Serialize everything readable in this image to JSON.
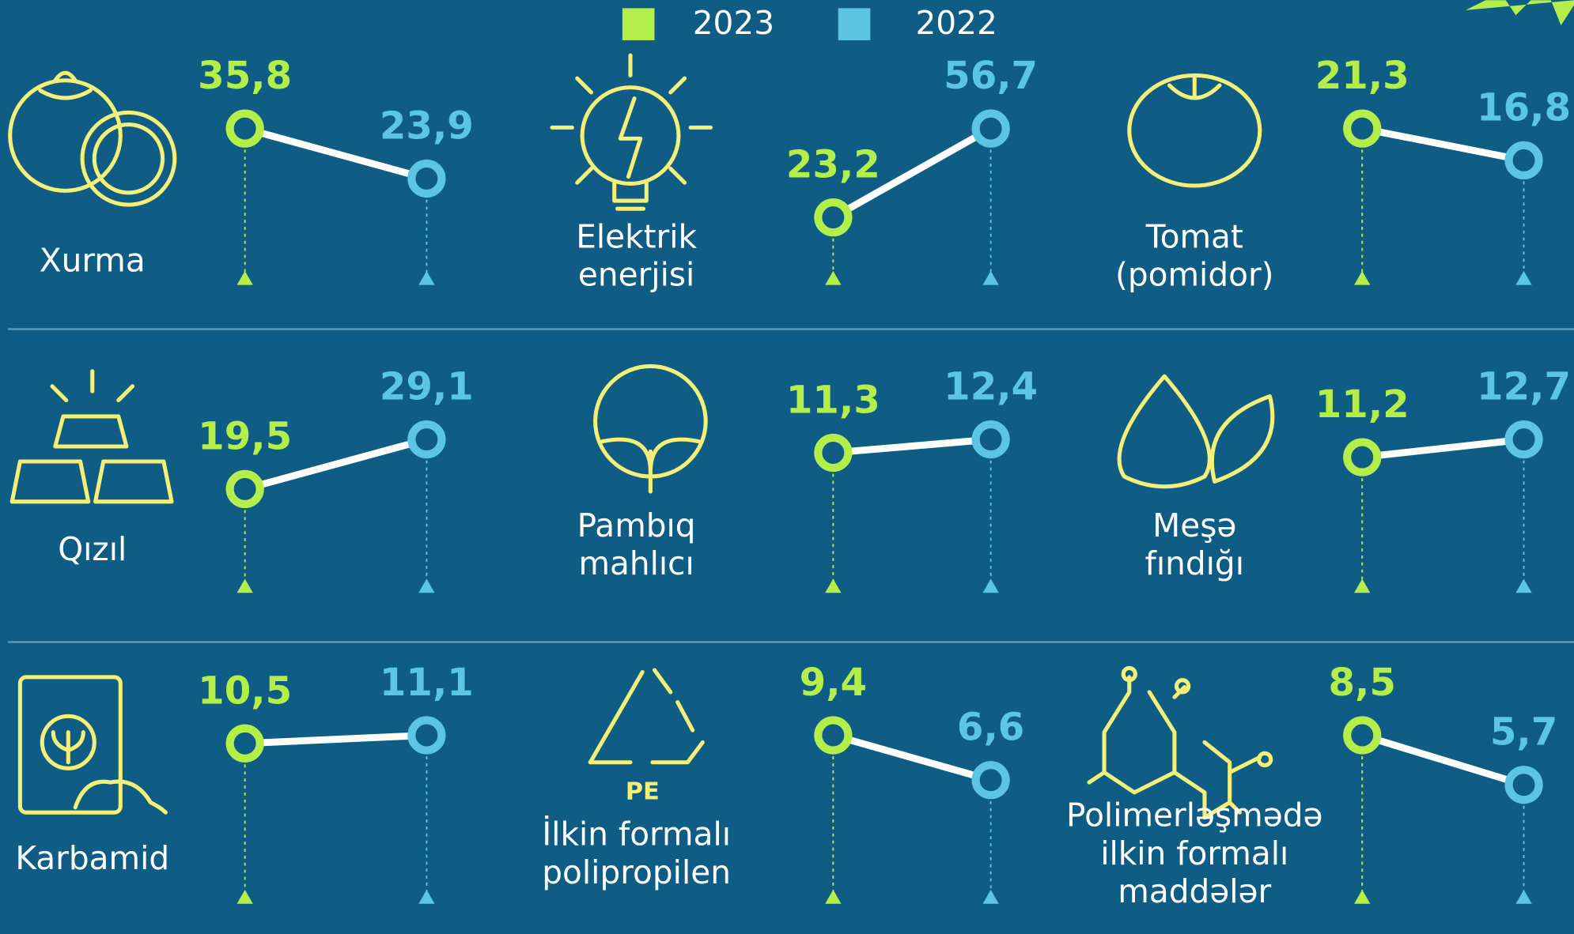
{
  "chart_data": {
    "type": "slope",
    "legend": [
      {
        "label": "2023",
        "color": "#b3ee4a"
      },
      {
        "label": "2022",
        "color": "#5cc6e2"
      }
    ],
    "panels": [
      {
        "name": [
          "Xurma"
        ],
        "values": [
          35.8,
          23.9
        ],
        "value_labels": [
          "35,8",
          "23,9"
        ]
      },
      {
        "name": [
          "Elektrik",
          "enerjisi"
        ],
        "values": [
          23.2,
          56.7
        ],
        "value_labels": [
          "23,2",
          "56,7"
        ]
      },
      {
        "name": [
          "Tomat",
          "(pomidor)"
        ],
        "values": [
          21.3,
          16.8
        ],
        "value_labels": [
          "21,3",
          "16,8"
        ]
      },
      {
        "name": [
          "Qızıl"
        ],
        "values": [
          19.5,
          29.1
        ],
        "value_labels": [
          "19,5",
          "29,1"
        ]
      },
      {
        "name": [
          "Pambıq",
          "mahlıcı"
        ],
        "values": [
          11.3,
          12.4
        ],
        "value_labels": [
          "11,3",
          "12,4"
        ]
      },
      {
        "name": [
          "Meşə",
          "fındığı"
        ],
        "values": [
          11.2,
          12.7
        ],
        "value_labels": [
          "11,2",
          "12,7"
        ]
      },
      {
        "name": [
          "Karbamid"
        ],
        "values": [
          10.5,
          11.1
        ],
        "value_labels": [
          "10,5",
          "11,1"
        ]
      },
      {
        "name": [
          "İlkin formalı",
          "polipropilen"
        ],
        "values": [
          9.4,
          6.6
        ],
        "value_labels": [
          "9,4",
          "6,6"
        ]
      },
      {
        "name": [
          "Polimerləşmədə",
          "ilkin formalı",
          "maddələr"
        ],
        "values": [
          8.5,
          5.7
        ],
        "value_labels": [
          "8,5",
          "5,7"
        ]
      }
    ]
  }
}
